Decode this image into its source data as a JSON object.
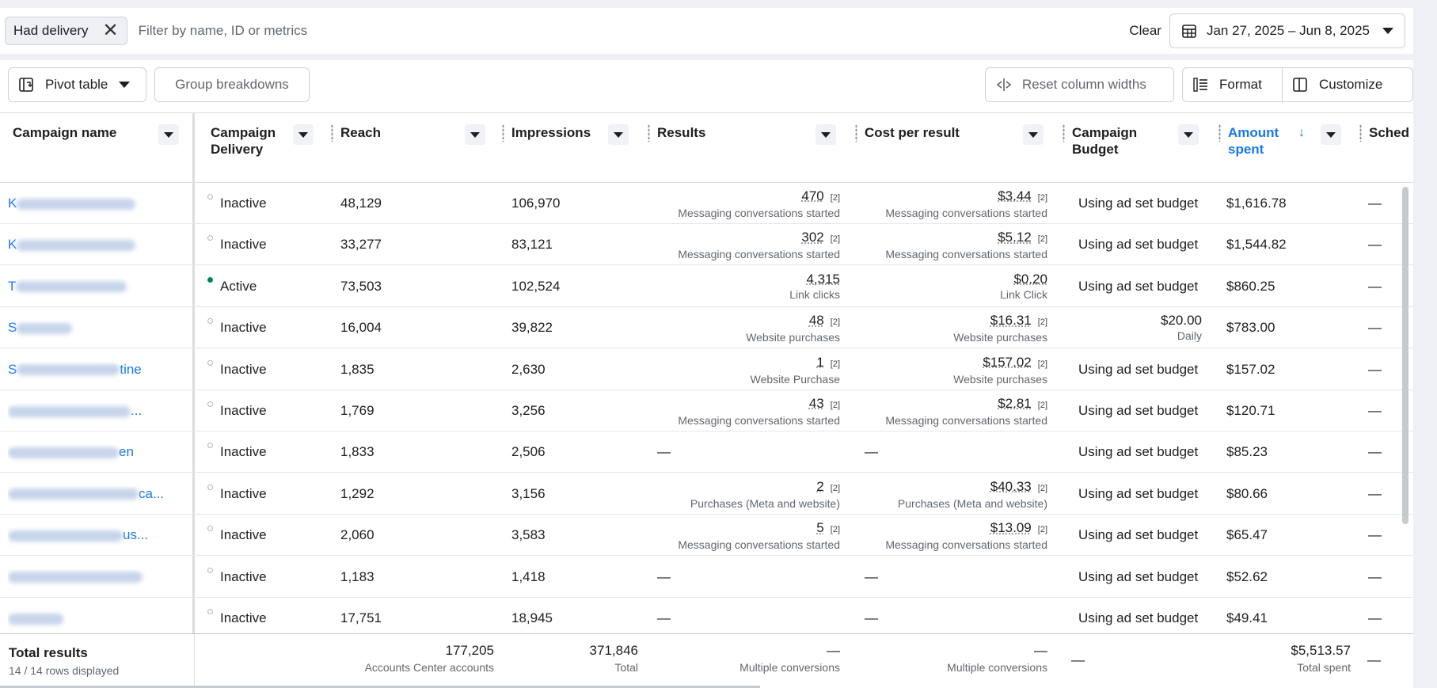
{
  "filter": {
    "chip_label": "Had delivery",
    "placeholder": "Filter by name, ID or metrics",
    "clear_label": "Clear",
    "date_range": "Jan 27, 2025 – Jun 8, 2025"
  },
  "toolbar": {
    "pivot_label": "Pivot table",
    "group_label": "Group breakdowns",
    "reset_label": "Reset column widths",
    "format_label": "Format",
    "customize_label": "Customize"
  },
  "columns": {
    "name": "Campaign name",
    "delivery_1": "Campaign",
    "delivery_2": "Delivery",
    "reach": "Reach",
    "impressions": "Impressions",
    "results": "Results",
    "cpr": "Cost per result",
    "budget_1": "Campaign",
    "budget_2": "Budget",
    "spent_1": "Amount",
    "spent_2": "spent",
    "sched": "Sched"
  },
  "footnote": "[2]",
  "dash": "—",
  "rows": [
    {
      "name_visible": "K",
      "name_tail": "",
      "delivery": "Inactive",
      "active": false,
      "reach": "48,129",
      "impressions": "106,970",
      "results": "470",
      "results_sub": "Messaging conversations started",
      "results_fn": true,
      "cpr": "$3.44",
      "cpr_sub": "Messaging conversations started",
      "cpr_fn": true,
      "budget": "Using ad set budget",
      "budget_sub": "",
      "spent": "$1,616.78"
    },
    {
      "name_visible": "K",
      "name_tail": "",
      "delivery": "Inactive",
      "active": false,
      "reach": "33,277",
      "impressions": "83,121",
      "results": "302",
      "results_sub": "Messaging conversations started",
      "results_fn": true,
      "cpr": "$5.12",
      "cpr_sub": "Messaging conversations started",
      "cpr_fn": true,
      "budget": "Using ad set budget",
      "budget_sub": "",
      "spent": "$1,544.82"
    },
    {
      "name_visible": "T",
      "name_tail": "",
      "delivery": "Active",
      "active": true,
      "reach": "73,503",
      "impressions": "102,524",
      "results": "4,315",
      "results_sub": "Link clicks",
      "results_fn": false,
      "cpr": "$0.20",
      "cpr_sub": "Link Click",
      "cpr_fn": false,
      "budget": "Using ad set budget",
      "budget_sub": "",
      "spent": "$860.25"
    },
    {
      "name_visible": "S",
      "name_tail": "",
      "delivery": "Inactive",
      "active": false,
      "reach": "16,004",
      "impressions": "39,822",
      "results": "48",
      "results_sub": "Website purchases",
      "results_fn": true,
      "cpr": "$16.31",
      "cpr_sub": "Website purchases",
      "cpr_fn": true,
      "budget": "$20.00",
      "budget_sub": "Daily",
      "spent": "$783.00"
    },
    {
      "name_visible": "S",
      "name_tail": "tine",
      "delivery": "Inactive",
      "active": false,
      "reach": "1,835",
      "impressions": "2,630",
      "results": "1",
      "results_sub": "Website Purchase",
      "results_fn": true,
      "cpr": "$157.02",
      "cpr_sub": "Website purchases",
      "cpr_fn": true,
      "budget": "Using ad set budget",
      "budget_sub": "",
      "spent": "$157.02"
    },
    {
      "name_visible": "",
      "name_tail": "...",
      "delivery": "Inactive",
      "active": false,
      "reach": "1,769",
      "impressions": "3,256",
      "results": "43",
      "results_sub": "Messaging conversations started",
      "results_fn": true,
      "cpr": "$2.81",
      "cpr_sub": "Messaging conversations started",
      "cpr_fn": true,
      "budget": "Using ad set budget",
      "budget_sub": "",
      "spent": "$120.71"
    },
    {
      "name_visible": "",
      "name_tail": "en",
      "delivery": "Inactive",
      "active": false,
      "reach": "1,833",
      "impressions": "2,506",
      "results": "",
      "results_sub": "",
      "results_fn": false,
      "cpr": "",
      "cpr_sub": "",
      "cpr_fn": false,
      "budget": "Using ad set budget",
      "budget_sub": "",
      "spent": "$85.23"
    },
    {
      "name_visible": "",
      "name_tail": "ca...",
      "delivery": "Inactive",
      "active": false,
      "reach": "1,292",
      "impressions": "3,156",
      "results": "2",
      "results_sub": "Purchases (Meta and website)",
      "results_fn": true,
      "cpr": "$40.33",
      "cpr_sub": "Purchases (Meta and website)",
      "cpr_fn": true,
      "budget": "Using ad set budget",
      "budget_sub": "",
      "spent": "$80.66"
    },
    {
      "name_visible": "",
      "name_tail": "us...",
      "delivery": "Inactive",
      "active": false,
      "reach": "2,060",
      "impressions": "3,583",
      "results": "5",
      "results_sub": "Messaging conversations started",
      "results_fn": true,
      "cpr": "$13.09",
      "cpr_sub": "Messaging conversations started",
      "cpr_fn": true,
      "budget": "Using ad set budget",
      "budget_sub": "",
      "spent": "$65.47"
    },
    {
      "name_visible": "",
      "name_tail": "",
      "delivery": "Inactive",
      "active": false,
      "reach": "1,183",
      "impressions": "1,418",
      "results": "",
      "results_sub": "",
      "results_fn": false,
      "cpr": "",
      "cpr_sub": "",
      "cpr_fn": false,
      "budget": "Using ad set budget",
      "budget_sub": "",
      "spent": "$52.62"
    },
    {
      "name_visible": "",
      "name_tail": "",
      "delivery": "Inactive",
      "active": false,
      "reach": "17,751",
      "impressions": "18,945",
      "results": "",
      "results_sub": "",
      "results_fn": false,
      "cpr": "",
      "cpr_sub": "",
      "cpr_fn": false,
      "budget": "Using ad set budget",
      "budget_sub": "",
      "spent": "$49.41"
    }
  ],
  "totals": {
    "label": "Total results",
    "rows_displayed": "14 / 14 rows displayed",
    "reach": "177,205",
    "reach_sub": "Accounts Center accounts",
    "impressions": "371,846",
    "impressions_sub": "Total",
    "results": "—",
    "results_sub": "Multiple conversions",
    "cpr": "—",
    "cpr_sub": "Multiple conversions",
    "budget": "—",
    "spent": "$5,513.57",
    "spent_sub": "Total spent",
    "sched": "—"
  },
  "colors": {
    "accent": "#1877f2",
    "active": "#00845e"
  }
}
